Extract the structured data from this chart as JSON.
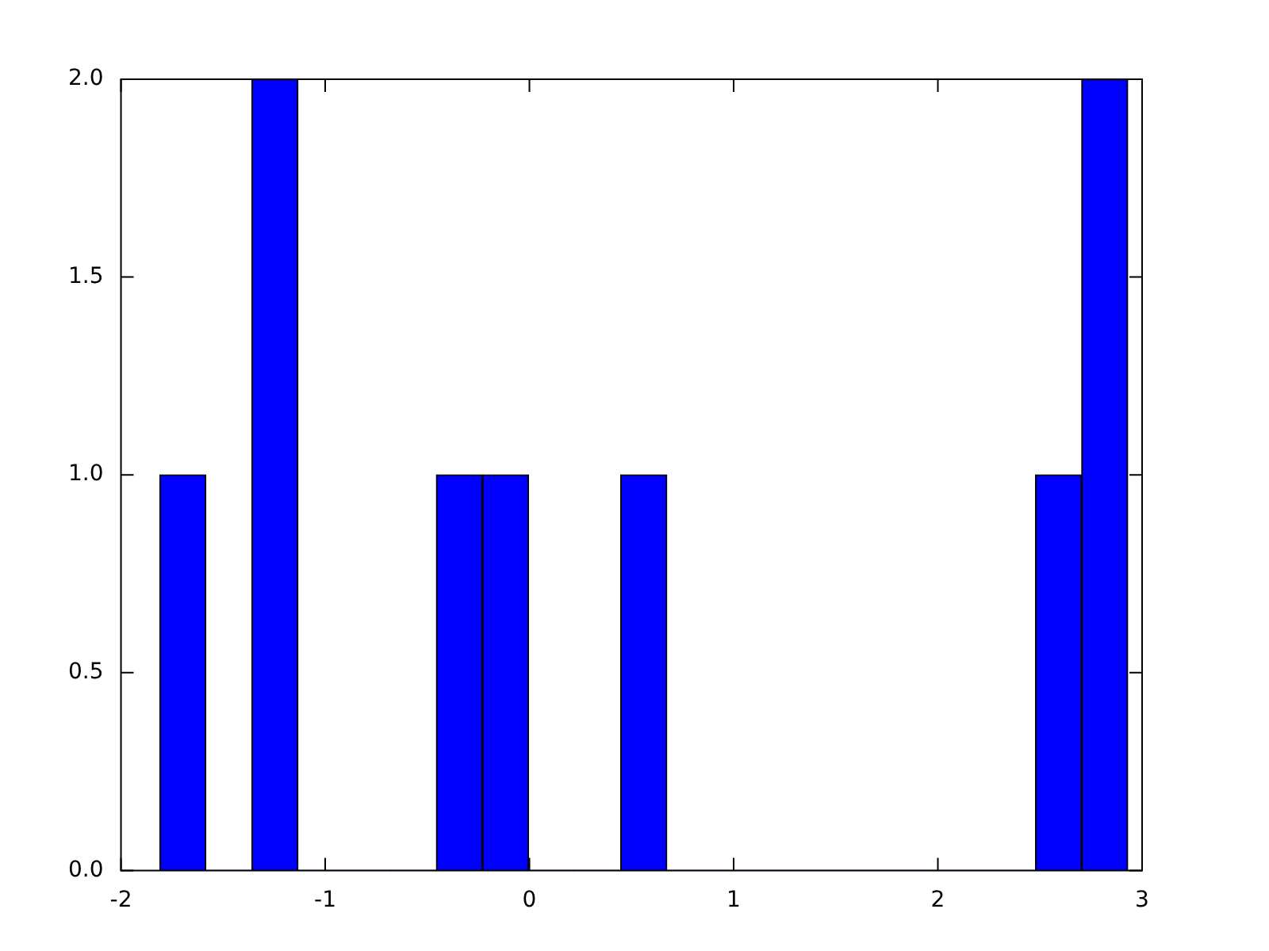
{
  "chart_data": {
    "type": "histogram",
    "bins": [
      -1.81,
      -1.584,
      -1.359,
      -1.133,
      -0.907,
      -0.681,
      -0.456,
      -0.23,
      -0.004,
      0.221,
      0.447,
      0.673,
      0.899,
      1.124,
      1.35,
      1.576,
      1.801,
      2.027,
      2.253,
      2.478,
      2.704,
      2.93
    ],
    "values": [
      1,
      0,
      2,
      0,
      0,
      0,
      1,
      1,
      0,
      0,
      1,
      0,
      0,
      0,
      0,
      0,
      0,
      0,
      0,
      1,
      2
    ],
    "color": "#0000ff",
    "xlim": [
      -2,
      3
    ],
    "xticks": [
      -2,
      -1,
      0,
      1,
      2,
      3
    ],
    "ylim": [
      0,
      2
    ],
    "yticks": [
      {
        "value": 0,
        "label": "0.0"
      },
      {
        "value": 0.5,
        "label": "0.5"
      },
      {
        "value": 1,
        "label": "1.0"
      },
      {
        "value": 1.5,
        "label": "1.5"
      },
      {
        "value": 2,
        "label": "2.0"
      }
    ]
  }
}
